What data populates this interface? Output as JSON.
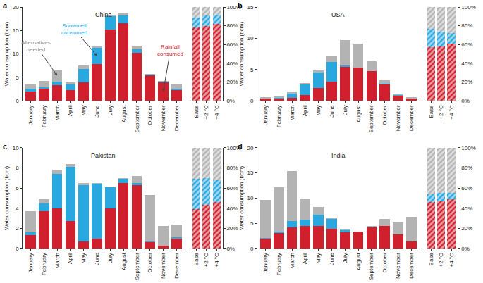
{
  "chart_data": [
    {
      "panel": "a",
      "type": "bar",
      "title": "China",
      "stacked": true,
      "grid": false,
      "y_label": "Water consumption (bcm)",
      "categories": [
        "January",
        "February",
        "March",
        "April",
        "May",
        "June",
        "July",
        "August",
        "September",
        "October",
        "November",
        "December"
      ],
      "ylim": [
        0,
        20
      ],
      "yticks": [
        0,
        5,
        10,
        15,
        20
      ],
      "series": [
        {
          "name": "Rainfall consumed",
          "color": "#d0202e",
          "values": [
            2.0,
            2.6,
            3.3,
            2.2,
            4.0,
            7.8,
            15.2,
            16.5,
            10.3,
            5.5,
            4.0,
            2.2
          ]
        },
        {
          "name": "Snowmelt consumed",
          "color": "#29a8e0",
          "values": [
            0.5,
            0.3,
            0.8,
            1.3,
            2.8,
            3.5,
            2.9,
            1.7,
            0.7,
            0.1,
            0.1,
            0.4
          ]
        },
        {
          "name": "Alternatives needed",
          "color": "#b3b3b3",
          "values": [
            1.0,
            1.3,
            2.6,
            0.5,
            0.7,
            0.5,
            0.3,
            0.4,
            0.8,
            0.2,
            0.2,
            0.9
          ]
        }
      ],
      "annotations": [
        {
          "text": "Alternatives needed",
          "category": "March",
          "series": "Alternatives needed"
        },
        {
          "text": "Snowmelt consumed",
          "category": "June",
          "series": "Snowmelt consumed"
        },
        {
          "text": "Rainfall consumed",
          "category": "November",
          "series": "Rainfall consumed"
        }
      ]
    },
    {
      "panel": "a",
      "type": "bar",
      "stacked": true,
      "marker": "hatched",
      "categories": [
        "Base",
        "+2 °C",
        "+4 °C"
      ],
      "y2lim": [
        0,
        100
      ],
      "y2ticks": [
        {
          "value": 0,
          "label": "0%"
        },
        {
          "value": 20,
          "label": "20%"
        },
        {
          "value": 40,
          "label": "40%"
        },
        {
          "value": 60,
          "label": "60%"
        },
        {
          "value": 80,
          "label": "80%"
        },
        {
          "value": 100,
          "label": "100%"
        }
      ],
      "series": [
        {
          "name": "Rainfall consumed",
          "color": "#d0202e",
          "axis": "y2",
          "values": [
            78,
            80,
            82
          ]
        },
        {
          "name": "Snowmelt consumed",
          "color": "#29a8e0",
          "axis": "y2",
          "values": [
            11,
            11,
            10
          ]
        },
        {
          "name": "Alternatives needed",
          "color": "#b3b3b3",
          "axis": "y2",
          "values": [
            11,
            9,
            8
          ]
        }
      ]
    },
    {
      "panel": "b",
      "type": "bar",
      "title": "USA",
      "stacked": true,
      "grid": false,
      "y_label": "Water consumption (bcm)",
      "categories": [
        "January",
        "February",
        "March",
        "April",
        "May",
        "June",
        "July",
        "August",
        "September",
        "October",
        "November",
        "December"
      ],
      "ylim": [
        0,
        15
      ],
      "yticks": [
        0,
        5,
        10,
        15
      ],
      "series": [
        {
          "name": "Rainfall consumed",
          "color": "#d0202e",
          "values": [
            0.3,
            0.3,
            0.5,
            0.9,
            2.0,
            3.1,
            5.4,
            5.3,
            4.8,
            2.6,
            0.8,
            0.4
          ]
        },
        {
          "name": "Snowmelt consumed",
          "color": "#29a8e0",
          "values": [
            0.1,
            0.2,
            0.6,
            1.7,
            2.5,
            3.1,
            0.3,
            0,
            0,
            0.1,
            0.1,
            0
          ]
        },
        {
          "name": "Alternatives needed",
          "color": "#b3b3b3",
          "values": [
            0.2,
            0.2,
            0.4,
            0.2,
            0.4,
            0.9,
            4.0,
            3.9,
            1.5,
            0.6,
            0.2,
            0.2
          ]
        }
      ]
    },
    {
      "panel": "b",
      "type": "bar",
      "stacked": true,
      "marker": "hatched",
      "categories": [
        "Base",
        "+2 °C",
        "+4 °C"
      ],
      "y2lim": [
        0,
        100
      ],
      "y2ticks": [
        {
          "value": 0,
          "label": "0%"
        },
        {
          "value": 20,
          "label": "20%"
        },
        {
          "value": 40,
          "label": "40%"
        },
        {
          "value": 60,
          "label": "60%"
        },
        {
          "value": 80,
          "label": "80%"
        },
        {
          "value": 100,
          "label": "100%"
        }
      ],
      "series": [
        {
          "name": "Rainfall consumed",
          "color": "#d0202e",
          "axis": "y2",
          "values": [
            57,
            58,
            61
          ]
        },
        {
          "name": "Snowmelt consumed",
          "color": "#29a8e0",
          "axis": "y2",
          "values": [
            20,
            16,
            11
          ]
        },
        {
          "name": "Alternatives needed",
          "color": "#b3b3b3",
          "axis": "y2",
          "values": [
            23,
            26,
            28
          ]
        }
      ]
    },
    {
      "panel": "c",
      "type": "bar",
      "title": "Pakistan",
      "stacked": true,
      "grid": false,
      "y_label": "Water consumption (bcm)",
      "categories": [
        "January",
        "February",
        "March",
        "April",
        "May",
        "June",
        "July",
        "August",
        "September",
        "October",
        "November",
        "December"
      ],
      "ylim": [
        0,
        10
      ],
      "yticks": [
        0,
        2,
        4,
        6,
        8,
        10
      ],
      "series": [
        {
          "name": "Rainfall consumed",
          "color": "#d0202e",
          "values": [
            1.3,
            3.7,
            4.0,
            2.7,
            0.7,
            1.0,
            4.0,
            6.5,
            6.3,
            0.6,
            0.3,
            1.0
          ]
        },
        {
          "name": "Snowmelt consumed",
          "color": "#29a8e0",
          "values": [
            0.3,
            0.8,
            3.4,
            5.4,
            5.6,
            5.4,
            2.1,
            0.4,
            0.2,
            0.1,
            0,
            0.1
          ]
        },
        {
          "name": "Alternatives needed",
          "color": "#b3b3b3",
          "values": [
            2.1,
            0.4,
            0.4,
            0.3,
            0.2,
            0.1,
            0,
            0.1,
            0.7,
            4.6,
            1.9,
            1.3
          ]
        }
      ]
    },
    {
      "panel": "c",
      "type": "bar",
      "stacked": true,
      "marker": "hatched",
      "categories": [
        "Base",
        "+2 °C",
        "+4 °C"
      ],
      "y2lim": [
        0,
        100
      ],
      "y2ticks": [
        {
          "value": 0,
          "label": "0%"
        },
        {
          "value": 20,
          "label": "20%"
        },
        {
          "value": 40,
          "label": "40%"
        },
        {
          "value": 60,
          "label": "60%"
        },
        {
          "value": 80,
          "label": "80%"
        },
        {
          "value": 100,
          "label": "100%"
        }
      ],
      "series": [
        {
          "name": "Rainfall consumed",
          "color": "#d0202e",
          "axis": "y2",
          "values": [
            39,
            43,
            46
          ]
        },
        {
          "name": "Snowmelt consumed",
          "color": "#29a8e0",
          "axis": "y2",
          "values": [
            30,
            27,
            22
          ]
        },
        {
          "name": "Alternatives needed",
          "color": "#b3b3b3",
          "axis": "y2",
          "values": [
            31,
            30,
            32
          ]
        }
      ]
    },
    {
      "panel": "d",
      "type": "bar",
      "title": "India",
      "stacked": true,
      "grid": false,
      "y_label": "Water consumption (bcm)",
      "categories": [
        "January",
        "February",
        "March",
        "April",
        "May",
        "June",
        "July",
        "August",
        "September",
        "October",
        "November",
        "December"
      ],
      "ylim": [
        0,
        20
      ],
      "yticks": [
        0,
        5,
        10,
        15,
        20
      ],
      "series": [
        {
          "name": "Rainfall consumed",
          "color": "#d0202e",
          "values": [
            2.0,
            3.0,
            4.2,
            4.5,
            4.5,
            3.9,
            3.2,
            3.3,
            4.2,
            4.4,
            2.8,
            1.4
          ]
        },
        {
          "name": "Snowmelt consumed",
          "color": "#29a8e0",
          "values": [
            0.1,
            0.3,
            1.2,
            1.2,
            2.2,
            2.0,
            0.4,
            0,
            0,
            0,
            0,
            0
          ]
        },
        {
          "name": "Alternatives needed",
          "color": "#b3b3b3",
          "values": [
            7.6,
            8.9,
            9.9,
            4.2,
            1.6,
            0.1,
            0.1,
            0.1,
            0.2,
            1.5,
            2.3,
            4.9
          ]
        }
      ]
    },
    {
      "panel": "d",
      "type": "bar",
      "stacked": true,
      "marker": "hatched",
      "categories": [
        "Base",
        "+2 °C",
        "+4 °C"
      ],
      "y2lim": [
        0,
        100
      ],
      "y2ticks": [
        {
          "value": 0,
          "label": "0%"
        },
        {
          "value": 20,
          "label": "20%"
        },
        {
          "value": 40,
          "label": "40%"
        },
        {
          "value": 60,
          "label": "60%"
        },
        {
          "value": 80,
          "label": "80%"
        },
        {
          "value": 100,
          "label": "100%"
        }
      ],
      "series": [
        {
          "name": "Rainfall consumed",
          "color": "#d0202e",
          "axis": "y2",
          "values": [
            46,
            47,
            49
          ]
        },
        {
          "name": "Snowmelt consumed",
          "color": "#29a8e0",
          "axis": "y2",
          "values": [
            8,
            8,
            6
          ]
        },
        {
          "name": "Alternatives needed",
          "color": "#b3b3b3",
          "axis": "y2",
          "values": [
            46,
            45,
            45
          ]
        }
      ]
    }
  ]
}
